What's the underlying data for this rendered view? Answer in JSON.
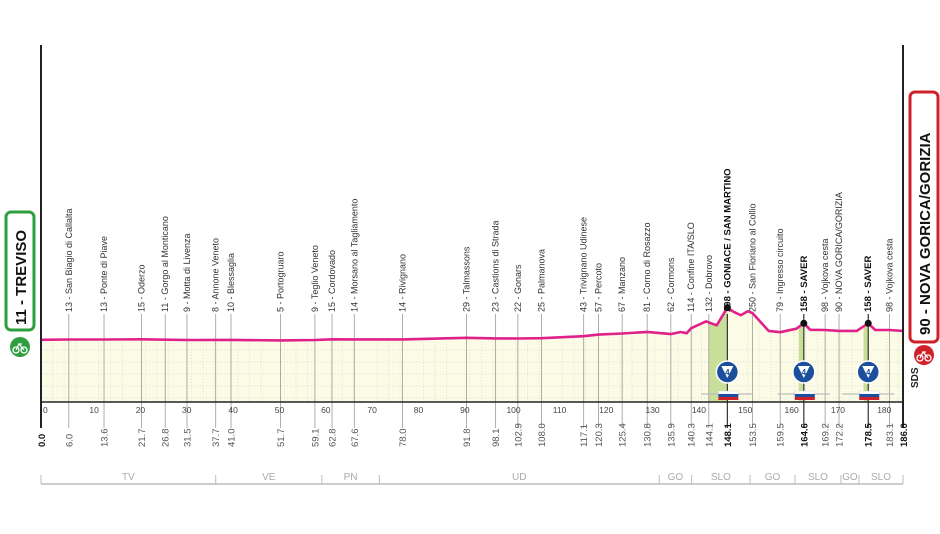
{
  "chart_data": {
    "type": "area",
    "title": "",
    "xlabel": "",
    "ylabel": "",
    "xlim": [
      0,
      186
    ],
    "x_ticks": [
      0,
      10,
      20,
      30,
      40,
      50,
      60,
      70,
      80,
      90,
      100,
      110,
      120,
      130,
      140,
      150,
      160,
      170,
      180
    ],
    "grid": true,
    "colors": {
      "profile": "#e0218a",
      "start": "#2e9e3e",
      "finish": "#d0202a",
      "climb_fill": "#c8df9a",
      "background": "#fbfbe6",
      "climb_marker": "#1b4f9c"
    },
    "start": {
      "label": "11 - TREVISO",
      "km": "0.0",
      "icon": "bike-icon"
    },
    "finish": {
      "label": "90 - NOVA GORICA/GORIZIA",
      "km": "186.0",
      "icon": "bike-icon"
    },
    "sponsor_mark": "SDS",
    "waypoints": [
      {
        "km": 6.0,
        "km_label": "6.0",
        "elev": 13,
        "label": "13 - San Biagio di Callalta"
      },
      {
        "km": 13.6,
        "km_label": "13.6",
        "elev": 13,
        "label": "13 - Ponte di Piave"
      },
      {
        "km": 21.7,
        "km_label": "21.7",
        "elev": 15,
        "label": "15 - Oderzo"
      },
      {
        "km": 26.8,
        "km_label": "26.8",
        "elev": 11,
        "label": "11 - Gorgo al Monticano"
      },
      {
        "km": 31.5,
        "km_label": "31.5",
        "elev": 9,
        "label": "9 - Motta di Livenza"
      },
      {
        "km": 37.7,
        "km_label": "37.7",
        "elev": 8,
        "label": "8 - Annone Veneto"
      },
      {
        "km": 41.0,
        "km_label": "41.0",
        "elev": 10,
        "label": "10 - Blessaglia"
      },
      {
        "km": 51.7,
        "km_label": "51.7",
        "elev": 5,
        "label": "5 - Portogruaro"
      },
      {
        "km": 59.1,
        "km_label": "59.1",
        "elev": 9,
        "label": "9 - Teglio Veneto"
      },
      {
        "km": 62.8,
        "km_label": "62.8",
        "elev": 15,
        "label": "15 - Cordovado"
      },
      {
        "km": 67.6,
        "km_label": "67.6",
        "elev": 14,
        "label": "14 - Morsano al Tagliamento"
      },
      {
        "km": 78.0,
        "km_label": "78.0",
        "elev": 14,
        "label": "14 - Rivignano"
      },
      {
        "km": 91.8,
        "km_label": "91.8",
        "elev": 29,
        "label": "29 - Talmassons"
      },
      {
        "km": 98.1,
        "km_label": "98.1",
        "elev": 23,
        "label": "23 - Castions di Strada"
      },
      {
        "km": 102.9,
        "km_label": "102.9",
        "elev": 22,
        "label": "22 - Gonars"
      },
      {
        "km": 108.0,
        "km_label": "108.0",
        "elev": 25,
        "label": "25 - Palmanova"
      },
      {
        "km": 117.1,
        "km_label": "117.1",
        "elev": 43,
        "label": "43 - Trivignano Udinese"
      },
      {
        "km": 120.3,
        "km_label": "120.3",
        "elev": 57,
        "label": "57 - Percoto"
      },
      {
        "km": 125.4,
        "km_label": "125.4",
        "elev": 67,
        "label": "67 - Manzano"
      },
      {
        "km": 130.8,
        "km_label": "130.8",
        "elev": 81,
        "label": "81 - Corno di Rosazzo"
      },
      {
        "km": 135.9,
        "km_label": "135.9",
        "elev": 62,
        "label": "62 - Cormons"
      },
      {
        "km": 140.3,
        "km_label": "140.3",
        "elev": 114,
        "label": "114 - Confine ITA/SLO"
      },
      {
        "km": 144.1,
        "km_label": "144.1",
        "elev": 132,
        "label": "132 - Dobrovo"
      },
      {
        "km": 148.1,
        "km_label": "148.1",
        "elev": 298,
        "label": "298 - GONIACE / SAN MARTINO",
        "bold": true,
        "gpm": 4
      },
      {
        "km": 153.5,
        "km_label": "153.5",
        "elev": 250,
        "label": "250 - San Floriano al Collio"
      },
      {
        "km": 159.5,
        "km_label": "159.5",
        "elev": 79,
        "label": "79 - Ingresso circuito"
      },
      {
        "km": 164.6,
        "km_label": "164.6",
        "elev": 158,
        "label": "158 - SAVER",
        "bold": true,
        "gpm": 4
      },
      {
        "km": 169.2,
        "km_label": "169.2",
        "elev": 98,
        "label": "98 - Vojkova cesta"
      },
      {
        "km": 172.2,
        "km_label": "172.2",
        "elev": 90,
        "label": "90 - NOVA GORICA/GORIZIA"
      },
      {
        "km": 178.5,
        "km_label": "178.5",
        "elev": 158,
        "label": "158 - SAVER",
        "bold": true,
        "gpm": 4
      },
      {
        "km": 183.1,
        "km_label": "183.1",
        "elev": 98,
        "label": "98 - Vojkova cesta"
      }
    ],
    "profile": [
      [
        0,
        11
      ],
      [
        6,
        13
      ],
      [
        13.6,
        13
      ],
      [
        21.7,
        15
      ],
      [
        31.5,
        9
      ],
      [
        41,
        10
      ],
      [
        51.7,
        5
      ],
      [
        59.1,
        9
      ],
      [
        62.8,
        15
      ],
      [
        67.6,
        14
      ],
      [
        78,
        14
      ],
      [
        91.8,
        29
      ],
      [
        98.1,
        23
      ],
      [
        102.9,
        22
      ],
      [
        108,
        25
      ],
      [
        117.1,
        43
      ],
      [
        120.3,
        57
      ],
      [
        125.4,
        67
      ],
      [
        130.8,
        81
      ],
      [
        135.9,
        62
      ],
      [
        138,
        80
      ],
      [
        139.3,
        70
      ],
      [
        140.3,
        114
      ],
      [
        143.5,
        175
      ],
      [
        145.8,
        140
      ],
      [
        148.1,
        298
      ],
      [
        149.5,
        260
      ],
      [
        151,
        230
      ],
      [
        152.5,
        265
      ],
      [
        153.5,
        250
      ],
      [
        157,
        90
      ],
      [
        159.5,
        79
      ],
      [
        163,
        110
      ],
      [
        164.6,
        158
      ],
      [
        166,
        100
      ],
      [
        169.2,
        98
      ],
      [
        172.2,
        90
      ],
      [
        176,
        90
      ],
      [
        178.5,
        158
      ],
      [
        180,
        98
      ],
      [
        183.1,
        98
      ],
      [
        186,
        90
      ]
    ],
    "climbs": [
      {
        "from_km": 144.1,
        "to_km": 148.1,
        "category": "4",
        "flag": "SLO"
      },
      {
        "from_km": 163.5,
        "to_km": 164.6,
        "category": "4",
        "flag": "SLO"
      },
      {
        "from_km": 177.5,
        "to_km": 178.5,
        "category": "4",
        "flag": "SLO"
      }
    ],
    "regions": [
      {
        "label": "TV",
        "from_km": 0,
        "to_km": 37.7
      },
      {
        "label": "VE",
        "from_km": 37.7,
        "to_km": 60.6
      },
      {
        "label": "PN",
        "from_km": 60.6,
        "to_km": 73
      },
      {
        "label": "UD",
        "from_km": 73,
        "to_km": 133.4
      },
      {
        "label": "GO",
        "from_km": 133.4,
        "to_km": 140.4
      },
      {
        "label": "SLO",
        "from_km": 140.4,
        "to_km": 153
      },
      {
        "label": "GO",
        "from_km": 153,
        "to_km": 162.7
      },
      {
        "label": "SLO",
        "from_km": 162.7,
        "to_km": 172.6
      },
      {
        "label": "GO",
        "from_km": 172.6,
        "to_km": 176.5
      },
      {
        "label": "SLO",
        "from_km": 176.5,
        "to_km": 186
      }
    ]
  }
}
